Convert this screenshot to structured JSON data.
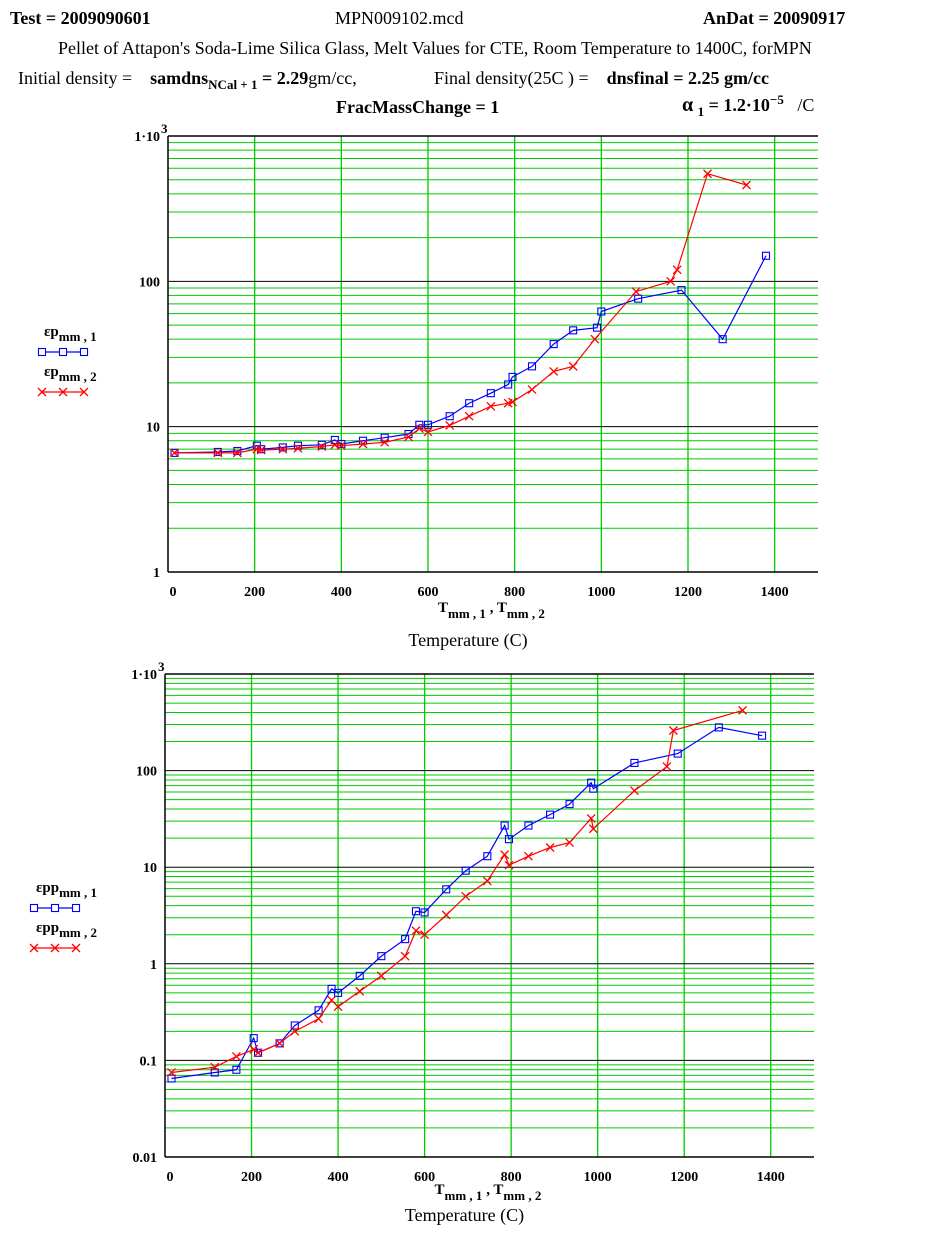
{
  "header": {
    "test_label": "Test = 2009090601",
    "file_name": "MPN009102.mcd",
    "andat_label": "AnDat = 20090917",
    "description": "Pellet of Attapon's Soda-Lime Silica Glass, Melt Values for CTE,  Room Temperature to 1400C,  forMPN",
    "initial_density_label": "Initial density =",
    "samdns_var": "samdns",
    "samdns_sub": "NCal + 1",
    "samdns_value": "= 2.29",
    "samdns_unit": "gm/cc,",
    "final_density_label": "Final density(25C ) =",
    "dnsfinal_var": "dnsfinal",
    "dnsfinal_value": "= 2.25 gm/cc",
    "fracmass_label": "FracMassChange",
    "fracmass_value": "= 1",
    "alpha_symbol": "α",
    "alpha_sub": "1",
    "alpha_value": "= 1.2·10",
    "alpha_exp": "−5",
    "alpha_unit": "/C"
  },
  "colors": {
    "grid": "#00cc00",
    "major_grid": "#000000",
    "series1": "#0000ff",
    "series2": "#ff0000"
  },
  "chart_data": [
    {
      "type": "line",
      "scale": "log-y",
      "xlabel_main": "T",
      "xlabel_sub1": "mm , 1",
      "xlabel_sep": " , T",
      "xlabel_sub2": "mm , 2",
      "xlabel_caption": "Temperature (C)",
      "xlim": [
        0,
        1500
      ],
      "ylim": [
        1,
        1000
      ],
      "x_ticks": [
        "0",
        "200",
        "400",
        "600",
        "800",
        "1000",
        "1200",
        "1400"
      ],
      "y_ticks": [
        "1",
        "10",
        "100",
        "1·10"
      ],
      "y_top_exp": "3",
      "grid": true,
      "legend_position": "left",
      "series": [
        {
          "name": "εp",
          "name_sub": "mm , 1",
          "marker": "square",
          "x": [
            15,
            115,
            160,
            205,
            215,
            265,
            300,
            355,
            385,
            400,
            450,
            500,
            555,
            580,
            600,
            650,
            695,
            745,
            785,
            795,
            840,
            890,
            935,
            990,
            1000,
            1085,
            1185,
            1280,
            1380
          ],
          "y": [
            6.6,
            6.7,
            6.8,
            7.4,
            7.0,
            7.2,
            7.4,
            7.5,
            8.1,
            7.6,
            8.0,
            8.4,
            8.9,
            10.3,
            10.3,
            11.8,
            14.5,
            17,
            19.5,
            22,
            26,
            37,
            46,
            48,
            62,
            76,
            87,
            40,
            150
          ]
        },
        {
          "name": "εp",
          "name_sub": "mm , 2",
          "marker": "x",
          "x": [
            15,
            115,
            160,
            205,
            215,
            265,
            300,
            355,
            385,
            400,
            450,
            500,
            555,
            580,
            600,
            650,
            695,
            745,
            785,
            795,
            840,
            890,
            935,
            985,
            1080,
            1160,
            1175,
            1245,
            1335
          ],
          "y": [
            6.6,
            6.6,
            6.6,
            7.0,
            6.9,
            7.0,
            7.1,
            7.3,
            7.5,
            7.4,
            7.6,
            7.8,
            8.5,
            9.7,
            9.2,
            10.2,
            11.8,
            13.8,
            14.5,
            14.8,
            18,
            24,
            26,
            40,
            85,
            100,
            120,
            550,
            460
          ]
        }
      ]
    },
    {
      "type": "line",
      "scale": "log-y",
      "xlabel_main": "T",
      "xlabel_sub1": "mm , 1",
      "xlabel_sep": " , T",
      "xlabel_sub2": "mm , 2",
      "xlabel_caption": "Temperature (C)",
      "xlim": [
        0,
        1500
      ],
      "ylim": [
        0.01,
        1000
      ],
      "x_ticks": [
        "0",
        "200",
        "400",
        "600",
        "800",
        "1000",
        "1200",
        "1400"
      ],
      "y_ticks": [
        "0.01",
        "0.1",
        "1",
        "10",
        "100",
        "1·10"
      ],
      "y_top_exp": "3",
      "grid": true,
      "legend_position": "left",
      "series": [
        {
          "name": "εpp",
          "name_sub": "mm , 1",
          "marker": "square",
          "x": [
            15,
            115,
            165,
            205,
            215,
            265,
            300,
            355,
            385,
            400,
            450,
            500,
            555,
            580,
            600,
            650,
            695,
            745,
            785,
            795,
            840,
            890,
            935,
            985,
            990,
            1085,
            1185,
            1280,
            1380
          ],
          "y": [
            0.065,
            0.075,
            0.08,
            0.17,
            0.12,
            0.15,
            0.23,
            0.33,
            0.55,
            0.5,
            0.75,
            1.2,
            1.8,
            3.5,
            3.4,
            5.9,
            9.2,
            13,
            27,
            19.5,
            27,
            35,
            45,
            75,
            65,
            120,
            150,
            280,
            230
          ]
        },
        {
          "name": "εpp",
          "name_sub": "mm , 2",
          "marker": "x",
          "x": [
            15,
            115,
            165,
            205,
            215,
            265,
            300,
            355,
            385,
            400,
            450,
            500,
            555,
            580,
            600,
            650,
            695,
            745,
            785,
            795,
            840,
            890,
            935,
            985,
            990,
            1085,
            1160,
            1175,
            1335
          ],
          "y": [
            0.075,
            0.085,
            0.11,
            0.13,
            0.12,
            0.15,
            0.2,
            0.27,
            0.42,
            0.36,
            0.52,
            0.75,
            1.2,
            2.2,
            2.0,
            3.2,
            5.0,
            7.2,
            13.5,
            10.5,
            13,
            16,
            18,
            32,
            25,
            62,
            110,
            260,
            420
          ]
        }
      ]
    }
  ]
}
